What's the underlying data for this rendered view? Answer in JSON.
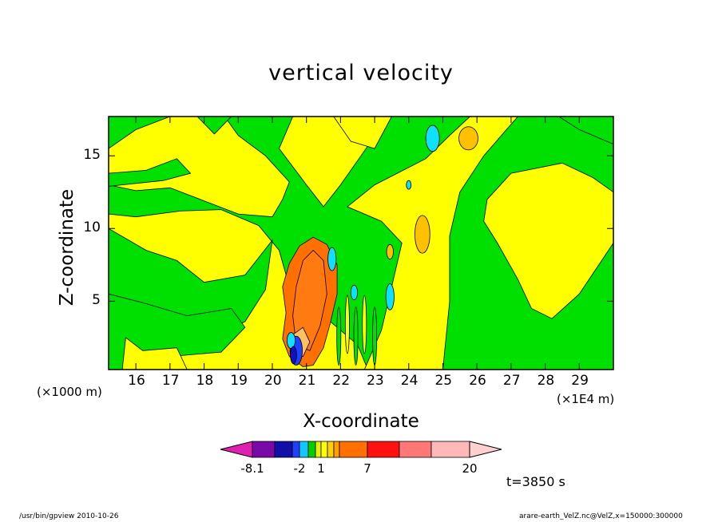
{
  "chart_data": {
    "type": "heatmap",
    "title": "vertical velocity",
    "xlabel": "X-coordinate",
    "ylabel": "Z-coordinate",
    "x_unit_left": "(×1000 m)",
    "x_unit_right": "(×1E4 m)",
    "xlim": [
      15.2,
      30
    ],
    "ylim": [
      0.3,
      17.7
    ],
    "x_ticks": [
      "16",
      "17",
      "18",
      "19",
      "20",
      "21",
      "22",
      "23",
      "24",
      "25",
      "26",
      "27",
      "28",
      "29"
    ],
    "y_ticks": [
      "5",
      "10",
      "15"
    ],
    "colorbar": {
      "levels": [
        -8.1,
        -6,
        -4,
        -2,
        -1,
        0,
        0.5,
        1,
        2,
        4,
        7,
        10,
        14,
        20
      ],
      "labels": [
        "-8.1",
        "-2",
        "1",
        "7",
        "20"
      ],
      "colors": [
        "#e020b0",
        "#7a0aa8",
        "#1010a8",
        "#2040ff",
        "#10c8ff",
        "#00d000",
        "#e8f000",
        "#ffff00",
        "#ffd000",
        "#ffa000",
        "#ff7000",
        "#ff1010",
        "#ff7878",
        "#ffb8b8",
        "#ffd0d0"
      ]
    },
    "annotation": "t=3850 s"
  },
  "footer": {
    "left": "/usr/bin/gpview   2010-10-26",
    "right": "arare-earth_VelZ.nc@VelZ,x=150000:300000"
  },
  "colors": {
    "green": "#00e000",
    "yellow": "#ffff00",
    "orange": "#ff7000",
    "gold": "#ffc000",
    "cyan": "#10e0ff",
    "blue": "#1010c8"
  }
}
